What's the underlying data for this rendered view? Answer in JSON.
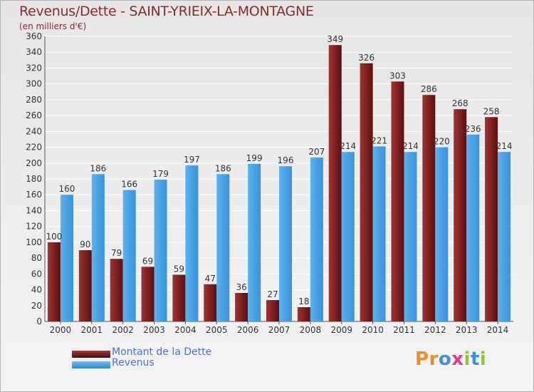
{
  "header": {
    "title": "Revenus/Dette - SAINT-YRIEIX-LA-MONTAGNE",
    "subtitle": "(en milliers d'€)"
  },
  "colors": {
    "dette": "#7a1f1f",
    "revenus": "#4aa3e6",
    "legend_text": "#4a6fe0",
    "title": "#8a2a2a",
    "grid": "#ffffff"
  },
  "legend": {
    "dette_label": "Montant de la Dette",
    "revenus_label": "Revenus"
  },
  "logo": {
    "text": "Proxiti"
  },
  "chart_data": {
    "type": "bar",
    "title": "Revenus/Dette - SAINT-YRIEIX-LA-MONTAGNE",
    "ylabel": "(en milliers d'€)",
    "xlabel": "",
    "ylim": [
      0,
      360
    ],
    "yticks": [
      0,
      20,
      40,
      60,
      80,
      100,
      120,
      140,
      160,
      180,
      200,
      220,
      240,
      260,
      280,
      300,
      320,
      340,
      360
    ],
    "grid": true,
    "legend_position": "bottom-left",
    "categories": [
      "2000",
      "2001",
      "2002",
      "2003",
      "2004",
      "2005",
      "2006",
      "2007",
      "2008",
      "2009",
      "2010",
      "2011",
      "2012",
      "2013",
      "2014"
    ],
    "series": [
      {
        "name": "Montant de la Dette",
        "values": [
          100,
          90,
          79,
          69,
          59,
          47,
          36,
          27,
          18,
          349,
          326,
          303,
          286,
          268,
          258
        ]
      },
      {
        "name": "Revenus",
        "values": [
          160,
          186,
          166,
          179,
          197,
          186,
          199,
          196,
          207,
          214,
          221,
          214,
          220,
          236,
          214
        ]
      }
    ]
  }
}
